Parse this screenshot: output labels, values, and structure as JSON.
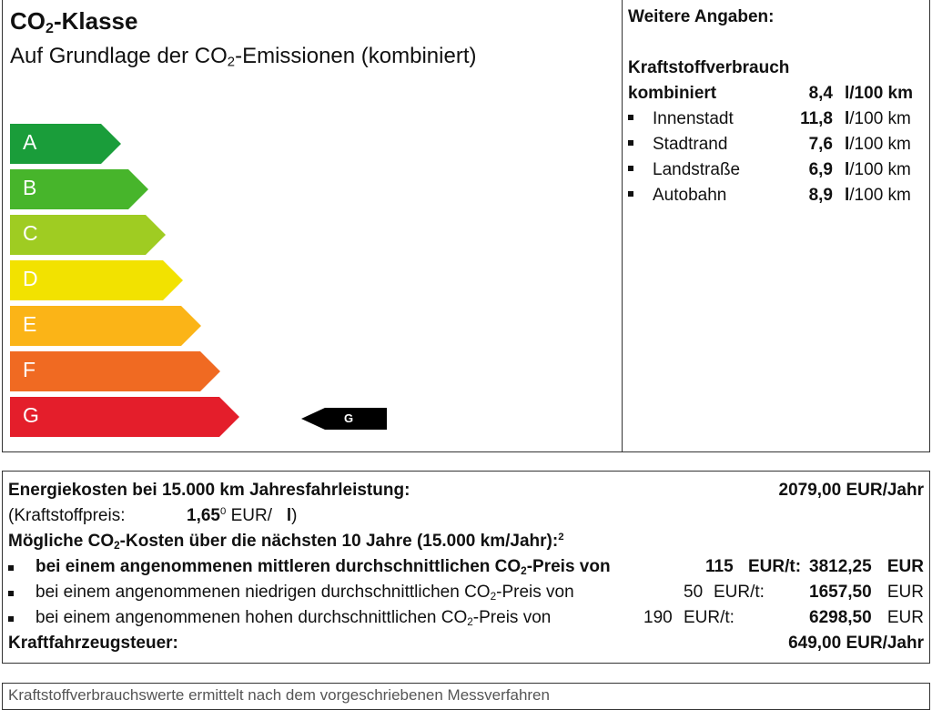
{
  "co2": {
    "title_prefix": "CO",
    "title_sub": "2",
    "title_suffix": "-Klasse",
    "subtitle_prefix": "Auf Grundlage der CO",
    "subtitle_sub": "2",
    "subtitle_suffix": "-Emissionen (kombiniert)",
    "classes": [
      {
        "letter": "A",
        "color": "#1a9d3a"
      },
      {
        "letter": "B",
        "color": "#47b52b"
      },
      {
        "letter": "C",
        "color": "#9fcc22"
      },
      {
        "letter": "D",
        "color": "#f2e200"
      },
      {
        "letter": "E",
        "color": "#fbb417"
      },
      {
        "letter": "F",
        "color": "#f06a22"
      },
      {
        "letter": "G",
        "color": "#e41e2b"
      }
    ],
    "current_class": "G"
  },
  "consumption": {
    "heading": "Weitere Angaben:",
    "section_title": "Kraftstoffverbrauch",
    "combined_label": "kombiniert",
    "combined_value": "8,4",
    "combined_unit": "l/100 km",
    "unit_l": "l",
    "unit_rest": "/100 km",
    "rows": [
      {
        "label": "Innenstadt",
        "value": "11,8"
      },
      {
        "label": "Stadtrand",
        "value": "7,6"
      },
      {
        "label": "Landstraße",
        "value": "6,9"
      },
      {
        "label": "Autobahn",
        "value": "8,9"
      }
    ]
  },
  "costs": {
    "energy_label": "Energiekosten bei 15.000 km Jahresfahrleistung:",
    "energy_value": "2079,00 EUR/Jahr",
    "fuel_price_label": "(Kraftstoffpreis:",
    "fuel_price_value": "1,65",
    "fuel_price_sup": "0",
    "fuel_price_unit": "EUR/",
    "fuel_price_l": "l",
    "fuel_price_close": ")",
    "co2_costs_prefix": "Mögliche CO",
    "co2_costs_sub": "2",
    "co2_costs_suffix": "-Kosten über die nächsten 10 Jahre (15.000 km/Jahr):",
    "co2_costs_sup": "2",
    "scenarios": [
      {
        "prefix": "bei einem angenommenen mittleren durchschnittlichen CO",
        "suffix": "-Preis von",
        "price": "115",
        "unit": "EUR/t:",
        "value": "3812,25",
        "currency": "EUR"
      },
      {
        "prefix": "bei einem angenommenen niedrigen durchschnittlichen CO",
        "suffix": "-Preis von",
        "price": "50",
        "unit": "EUR/t:",
        "value": "1657,50",
        "currency": "EUR"
      },
      {
        "prefix": "bei einem angenommenen hohen durchschnittlichen CO",
        "suffix": "-Preis von",
        "price": "190",
        "unit": "EUR/t:",
        "value": "6298,50",
        "currency": "EUR"
      }
    ],
    "scenario_sub": "2",
    "tax_label": "Kraftfahrzeugsteuer:",
    "tax_value": "649,00 EUR/Jahr"
  },
  "footer": {
    "text": "Kraftstoffverbrauchswerte ermittelt nach dem vorgeschriebenen Messverfahren"
  }
}
